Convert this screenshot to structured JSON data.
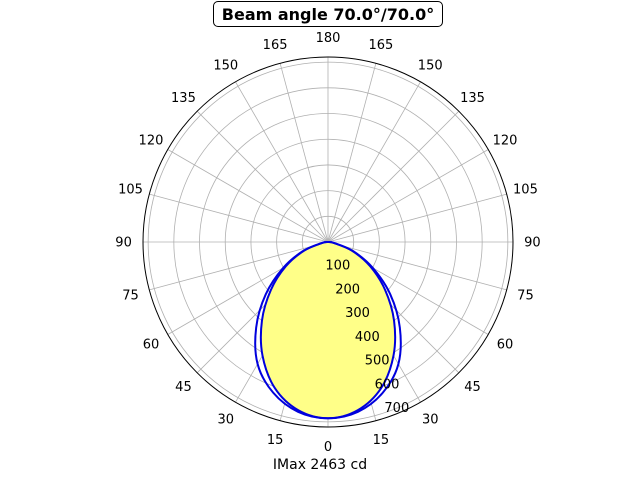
{
  "chart_data": {
    "type": "polar",
    "title": "Beam angle 70.0°/70.0°",
    "xlabel": "IMax 2463 cd",
    "angle_tick_labels": [
      "0",
      "15",
      "30",
      "45",
      "60",
      "75",
      "90",
      "105",
      "120",
      "135",
      "150",
      "165",
      "180",
      "165",
      "150",
      "135",
      "120",
      "105",
      "90",
      "75",
      "60",
      "45",
      "30",
      "15"
    ],
    "radial_ticks": [
      100,
      200,
      300,
      400,
      500,
      600,
      700
    ],
    "rlim": [
      0,
      720
    ],
    "grid": true,
    "fill_color": "#ffff88",
    "series": [
      {
        "color": "#0000dd",
        "angles": [
          0,
          10,
          20,
          30,
          40,
          50,
          60,
          70,
          80,
          90
        ],
        "values": [
          686,
          671,
          624,
          548,
          435,
          316,
          201,
          104,
          26,
          0
        ]
      },
      {
        "color": "#0000dd",
        "angles": [
          0,
          10,
          20,
          30,
          40,
          50,
          60,
          70,
          80,
          90
        ],
        "values": [
          686,
          665,
          605,
          510,
          400,
          290,
          190,
          100,
          26,
          0
        ]
      }
    ]
  }
}
